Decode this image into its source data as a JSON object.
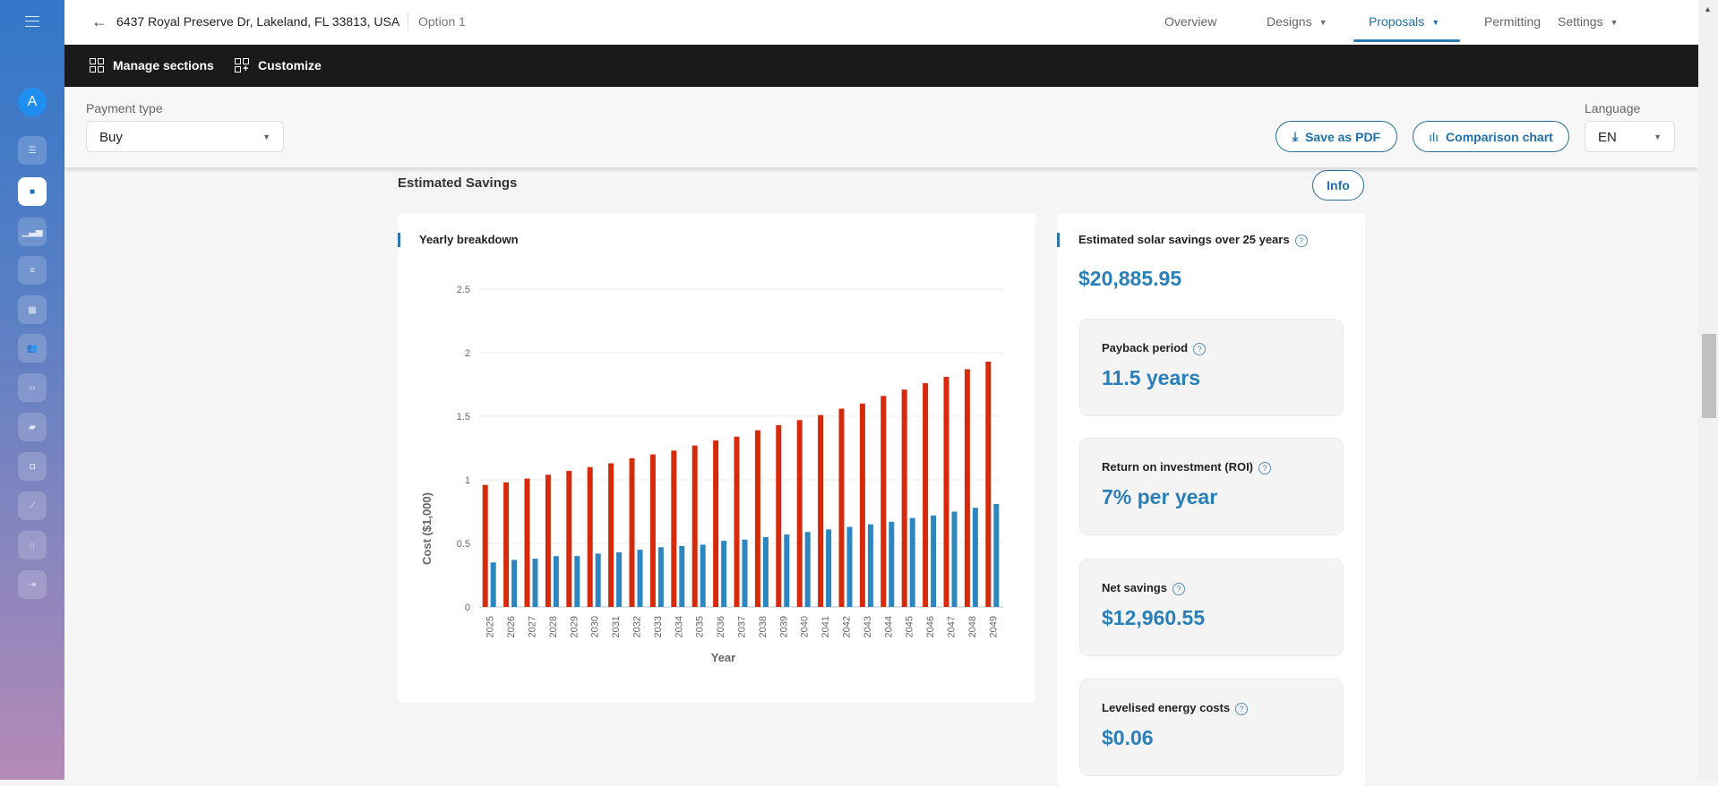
{
  "sidebar": {
    "avatar": "A",
    "icons": [
      "list-icon",
      "briefcase-icon",
      "bar-chart-icon",
      "database-icon",
      "buildings-icon",
      "users-icon",
      "code-icon",
      "folder-settings-icon",
      "wallet-icon",
      "trend-chart-icon",
      "bank-icon",
      "logout-icon"
    ],
    "active_index": 1
  },
  "header": {
    "address": "6437 Royal Preserve Dr, Lakeland, FL 33813, USA",
    "option": "Option 1",
    "tabs": [
      {
        "label": "Overview"
      },
      {
        "label": "Designs",
        "dropdown": true
      },
      {
        "label": "Proposals",
        "dropdown": true,
        "active": true
      },
      {
        "label": "Permitting"
      },
      {
        "label": "Settings",
        "dropdown": true
      }
    ]
  },
  "toolbar": {
    "manage_sections": "Manage sections",
    "customize": "Customize"
  },
  "controls": {
    "payment_type_label": "Payment type",
    "payment_type_value": "Buy",
    "save_pdf": "Save as PDF",
    "comparison_chart": "Comparison chart",
    "language_label": "Language",
    "language_value": "EN"
  },
  "section": {
    "title": "Estimated Savings",
    "info": "Info"
  },
  "savings": {
    "title": "Estimated solar savings over 25 years",
    "value": "$20,885.95",
    "stats": [
      {
        "label": "Payback period",
        "value": "11.5 years"
      },
      {
        "label": "Return on investment (ROI)",
        "value": "7% per year"
      },
      {
        "label": "Net savings",
        "value": "$12,960.55"
      },
      {
        "label": "Levelised energy costs",
        "value": "$0.06"
      }
    ]
  },
  "chart_data": {
    "type": "bar",
    "title": "Yearly breakdown",
    "xlabel": "Year",
    "ylabel": "Cost ($1,000)",
    "ylim": [
      0,
      2.5
    ],
    "yticks": [
      "0",
      "0.5",
      "1",
      "1.5",
      "2",
      "2.5"
    ],
    "grid": true,
    "categories": [
      "2025",
      "2026",
      "2027",
      "2028",
      "2029",
      "2030",
      "2031",
      "2032",
      "2033",
      "2034",
      "2035",
      "2036",
      "2037",
      "2038",
      "2039",
      "2040",
      "2041",
      "2042",
      "2043",
      "2044",
      "2045",
      "2046",
      "2047",
      "2048",
      "2049"
    ],
    "series": [
      {
        "color": "#d52b0c",
        "values": [
          0.96,
          0.98,
          1.01,
          1.04,
          1.07,
          1.1,
          1.13,
          1.17,
          1.2,
          1.23,
          1.27,
          1.31,
          1.34,
          1.39,
          1.43,
          1.47,
          1.51,
          1.56,
          1.6,
          1.66,
          1.71,
          1.76,
          1.81,
          1.87,
          1.93
        ]
      },
      {
        "color": "#2e86c1",
        "values": [
          0.35,
          0.37,
          0.38,
          0.4,
          0.4,
          0.42,
          0.43,
          0.45,
          0.47,
          0.48,
          0.49,
          0.52,
          0.53,
          0.55,
          0.57,
          0.59,
          0.61,
          0.63,
          0.65,
          0.67,
          0.7,
          0.72,
          0.75,
          0.78,
          0.81
        ]
      }
    ]
  }
}
